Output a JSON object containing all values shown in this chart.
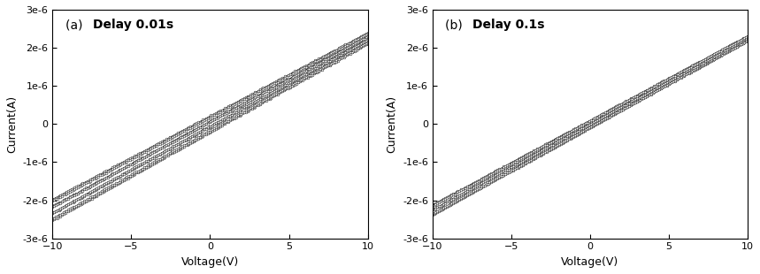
{
  "panel_a_label_normal": "(a) ",
  "panel_a_label_bold": "Delay 0.01s",
  "panel_b_label_normal": "(b) ",
  "panel_b_label_bold": "Delay 0.1s",
  "xlabel": "Voltage(V)",
  "ylabel": "Current(A)",
  "xlim": [
    -10,
    10
  ],
  "ylim": [
    -3e-06,
    3e-06
  ],
  "yticks": [
    -3e-06,
    -2e-06,
    -1e-06,
    0,
    1e-06,
    2e-06,
    3e-06
  ],
  "xticks": [
    -10,
    -5,
    0,
    5,
    10
  ],
  "conductance": 2.25e-07,
  "line_color": "#000000",
  "markersize": 2.0,
  "bg_color": "#ffffff",
  "label_fontsize": 9,
  "tick_fontsize": 8,
  "annotation_fontsize": 10,
  "n_curves_a": 4,
  "n_curves_b": 3,
  "spread_a": 5.5e-07,
  "spread_b": 2.5e-07,
  "noise_a": 6e-09,
  "noise_b": 4e-09,
  "n_points": 200
}
